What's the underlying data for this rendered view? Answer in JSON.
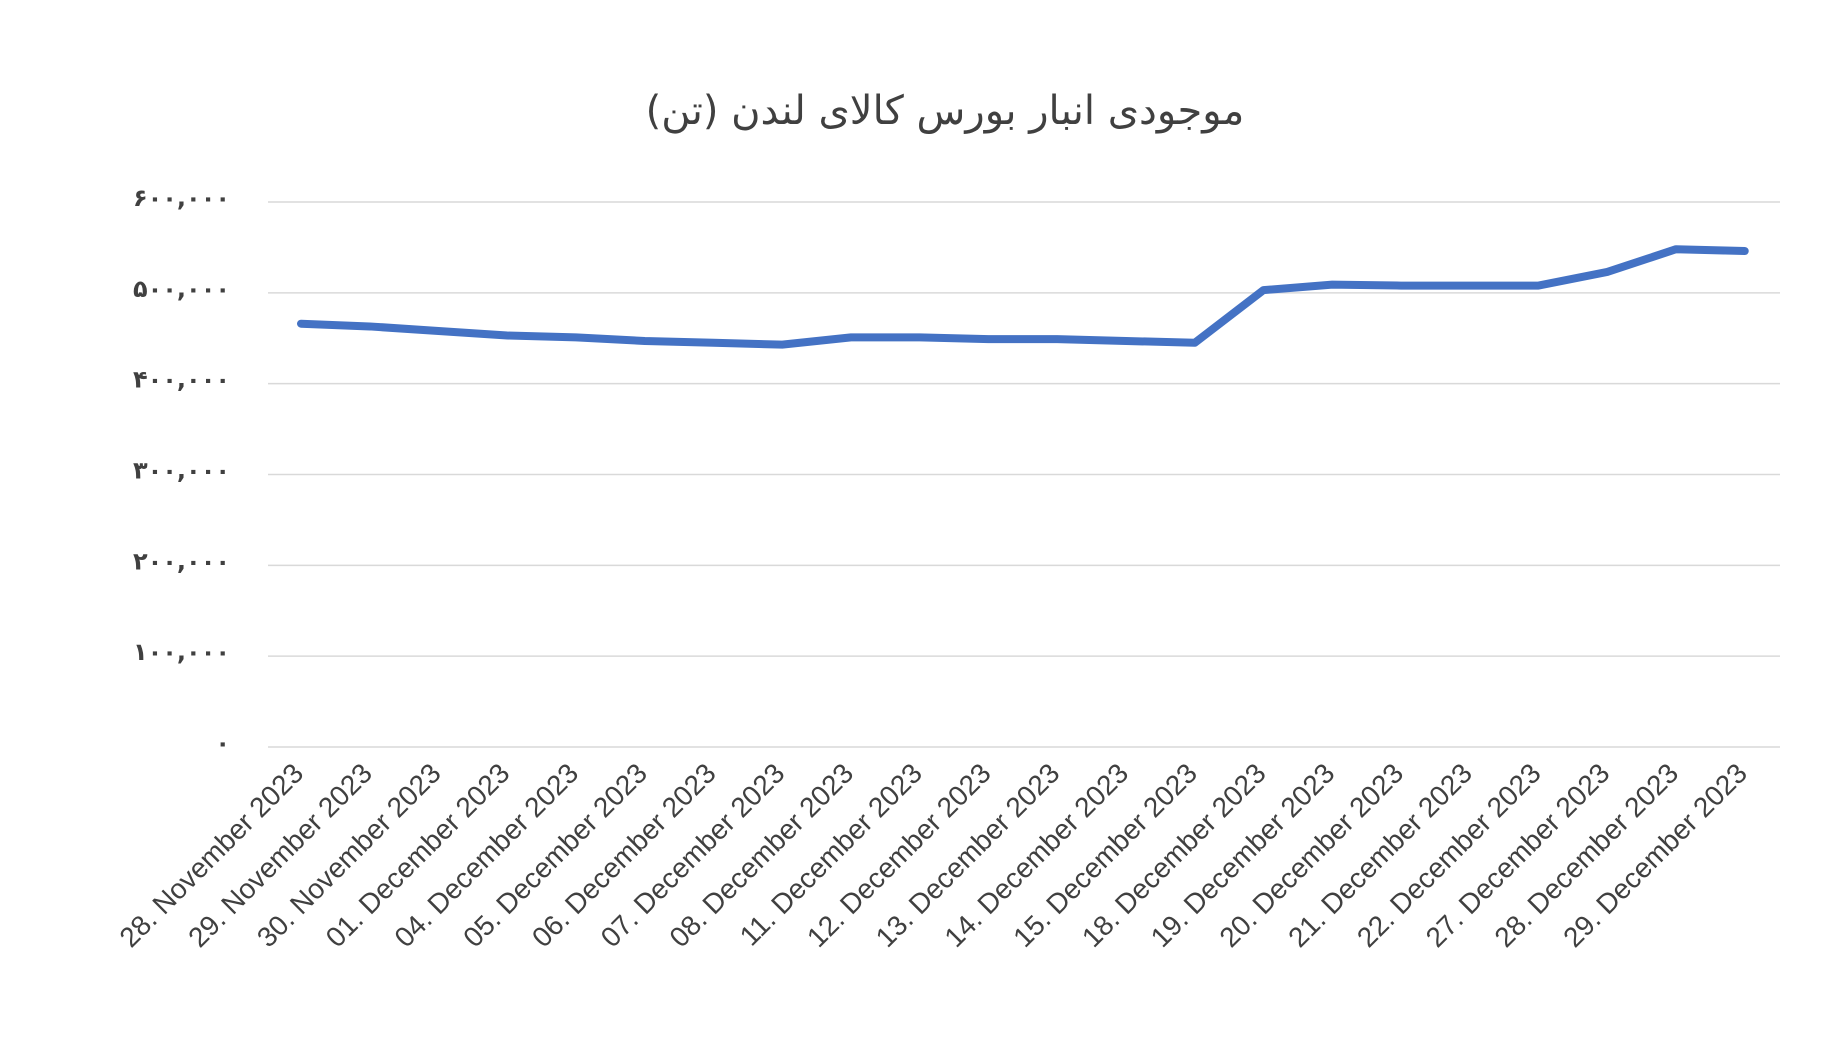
{
  "chart_data": {
    "type": "line",
    "title": "موجودی انبار بورس کالای لندن (تن)",
    "xlabel": "",
    "ylabel": "",
    "ylim": [
      0,
      600000
    ],
    "y_ticks": [
      0,
      100000,
      200000,
      300000,
      400000,
      500000,
      600000
    ],
    "y_tick_labels": [
      "۰",
      "۱۰۰,۰۰۰",
      "۲۰۰,۰۰۰",
      "۳۰۰,۰۰۰",
      "۴۰۰,۰۰۰",
      "۵۰۰,۰۰۰",
      "۶۰۰,۰۰۰"
    ],
    "grid": true,
    "legend": "none",
    "categories": [
      "28. November 2023",
      "29. November 2023",
      "30. November 2023",
      "01. December 2023",
      "04. December 2023",
      "05. December 2023",
      "06. December 2023",
      "07. December 2023",
      "08. December 2023",
      "11. December 2023",
      "12. December 2023",
      "13. December 2023",
      "14. December 2023",
      "15. December 2023",
      "18. December 2023",
      "19. December 2023",
      "20. December 2023",
      "21. December 2023",
      "22. December 2023",
      "27. December 2023",
      "28. December 2023",
      "29. December 2023"
    ],
    "series": [
      {
        "color": "#4472c4",
        "values": [
          466000,
          463000,
          458000,
          453000,
          451000,
          447000,
          445000,
          443000,
          451000,
          451000,
          449000,
          449000,
          447000,
          445000,
          503000,
          509000,
          508000,
          508000,
          508000,
          523000,
          548000,
          546000
        ]
      }
    ]
  }
}
